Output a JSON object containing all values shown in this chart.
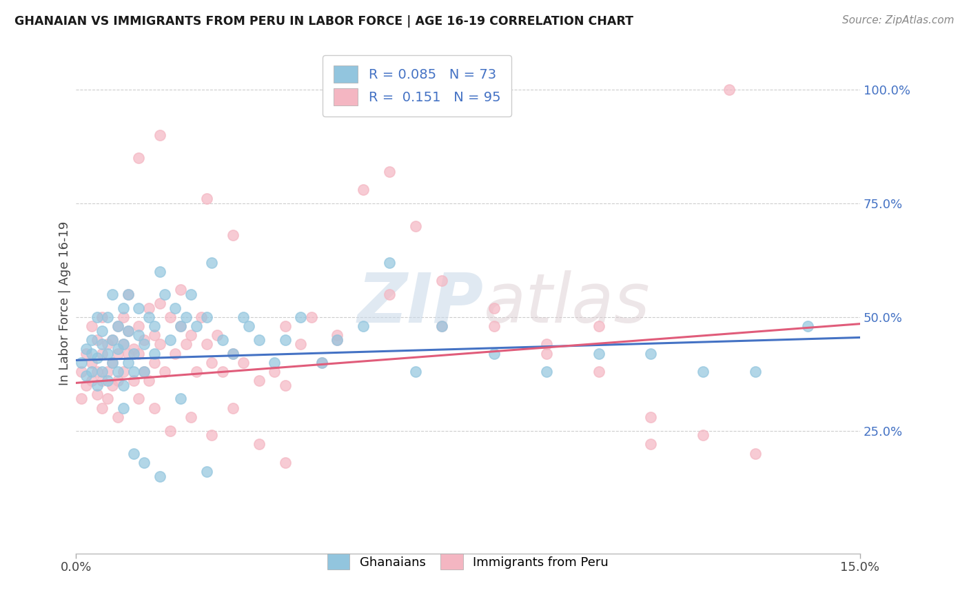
{
  "title": "GHANAIAN VS IMMIGRANTS FROM PERU IN LABOR FORCE | AGE 16-19 CORRELATION CHART",
  "source": "Source: ZipAtlas.com",
  "ylabel": "In Labor Force | Age 16-19",
  "xlim": [
    0.0,
    0.15
  ],
  "ylim": [
    -0.02,
    1.08
  ],
  "ytick_labels": [
    "25.0%",
    "50.0%",
    "75.0%",
    "100.0%"
  ],
  "ytick_positions": [
    0.25,
    0.5,
    0.75,
    1.0
  ],
  "color_blue": "#92c5de",
  "color_pink": "#f4b6c2",
  "line_blue": "#4472c4",
  "line_pink": "#e05c7a",
  "R_blue": 0.085,
  "N_blue": 73,
  "R_pink": 0.151,
  "N_pink": 95,
  "blue_line_x0": 0.0,
  "blue_line_y0": 0.405,
  "blue_line_x1": 0.15,
  "blue_line_y1": 0.455,
  "pink_line_x0": 0.0,
  "pink_line_y0": 0.355,
  "pink_line_x1": 0.15,
  "pink_line_y1": 0.485,
  "watermark_zip": "ZIP",
  "watermark_atlas": "atlas",
  "blue_x": [
    0.001,
    0.002,
    0.002,
    0.003,
    0.003,
    0.003,
    0.004,
    0.004,
    0.004,
    0.005,
    0.005,
    0.005,
    0.006,
    0.006,
    0.006,
    0.007,
    0.007,
    0.007,
    0.008,
    0.008,
    0.008,
    0.009,
    0.009,
    0.009,
    0.01,
    0.01,
    0.01,
    0.011,
    0.011,
    0.012,
    0.012,
    0.013,
    0.013,
    0.014,
    0.015,
    0.015,
    0.016,
    0.017,
    0.018,
    0.019,
    0.02,
    0.021,
    0.022,
    0.023,
    0.025,
    0.026,
    0.028,
    0.03,
    0.032,
    0.033,
    0.035,
    0.038,
    0.04,
    0.043,
    0.047,
    0.05,
    0.055,
    0.06,
    0.065,
    0.07,
    0.08,
    0.09,
    0.1,
    0.11,
    0.12,
    0.13,
    0.14,
    0.009,
    0.011,
    0.013,
    0.016,
    0.02,
    0.025
  ],
  "blue_y": [
    0.4,
    0.43,
    0.37,
    0.42,
    0.38,
    0.45,
    0.5,
    0.35,
    0.41,
    0.44,
    0.38,
    0.47,
    0.42,
    0.5,
    0.36,
    0.45,
    0.4,
    0.55,
    0.43,
    0.38,
    0.48,
    0.52,
    0.35,
    0.44,
    0.47,
    0.4,
    0.55,
    0.42,
    0.38,
    0.46,
    0.52,
    0.44,
    0.38,
    0.5,
    0.42,
    0.48,
    0.6,
    0.55,
    0.45,
    0.52,
    0.48,
    0.5,
    0.55,
    0.48,
    0.5,
    0.62,
    0.45,
    0.42,
    0.5,
    0.48,
    0.45,
    0.4,
    0.45,
    0.5,
    0.4,
    0.45,
    0.48,
    0.62,
    0.38,
    0.48,
    0.42,
    0.38,
    0.42,
    0.42,
    0.38,
    0.38,
    0.48,
    0.3,
    0.2,
    0.18,
    0.15,
    0.32,
    0.16
  ],
  "pink_x": [
    0.001,
    0.001,
    0.002,
    0.002,
    0.003,
    0.003,
    0.003,
    0.004,
    0.004,
    0.004,
    0.005,
    0.005,
    0.005,
    0.006,
    0.006,
    0.006,
    0.007,
    0.007,
    0.007,
    0.008,
    0.008,
    0.008,
    0.009,
    0.009,
    0.009,
    0.01,
    0.01,
    0.01,
    0.011,
    0.011,
    0.012,
    0.012,
    0.013,
    0.013,
    0.014,
    0.014,
    0.015,
    0.015,
    0.016,
    0.016,
    0.017,
    0.018,
    0.019,
    0.02,
    0.021,
    0.022,
    0.023,
    0.024,
    0.025,
    0.026,
    0.027,
    0.028,
    0.03,
    0.032,
    0.035,
    0.038,
    0.04,
    0.043,
    0.045,
    0.047,
    0.05,
    0.055,
    0.06,
    0.065,
    0.07,
    0.08,
    0.09,
    0.1,
    0.11,
    0.125,
    0.04,
    0.05,
    0.06,
    0.07,
    0.08,
    0.09,
    0.1,
    0.11,
    0.12,
    0.13,
    0.005,
    0.008,
    0.012,
    0.015,
    0.018,
    0.022,
    0.026,
    0.03,
    0.035,
    0.04,
    0.012,
    0.016,
    0.02,
    0.025,
    0.03
  ],
  "pink_y": [
    0.38,
    0.32,
    0.42,
    0.35,
    0.4,
    0.36,
    0.48,
    0.33,
    0.45,
    0.38,
    0.42,
    0.36,
    0.5,
    0.38,
    0.44,
    0.32,
    0.45,
    0.4,
    0.35,
    0.48,
    0.42,
    0.36,
    0.5,
    0.44,
    0.38,
    0.47,
    0.42,
    0.55,
    0.43,
    0.36,
    0.48,
    0.42,
    0.45,
    0.38,
    0.52,
    0.36,
    0.46,
    0.4,
    0.53,
    0.44,
    0.38,
    0.5,
    0.42,
    0.48,
    0.44,
    0.46,
    0.38,
    0.5,
    0.44,
    0.4,
    0.46,
    0.38,
    0.42,
    0.4,
    0.36,
    0.38,
    0.48,
    0.44,
    0.5,
    0.4,
    0.46,
    0.78,
    0.82,
    0.7,
    0.58,
    0.48,
    0.42,
    0.38,
    0.28,
    1.0,
    0.35,
    0.45,
    0.55,
    0.48,
    0.52,
    0.44,
    0.48,
    0.22,
    0.24,
    0.2,
    0.3,
    0.28,
    0.32,
    0.3,
    0.25,
    0.28,
    0.24,
    0.3,
    0.22,
    0.18,
    0.85,
    0.9,
    0.56,
    0.76,
    0.68
  ]
}
